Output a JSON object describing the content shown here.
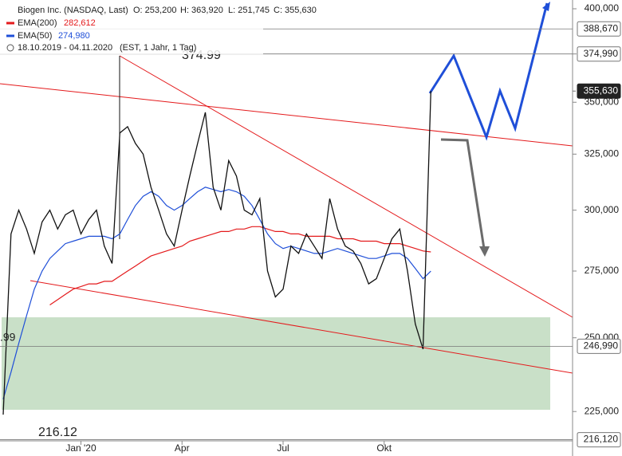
{
  "chart_data": {
    "type": "line",
    "title": "Biogen Inc. (NASDAQ, Last)",
    "header_stats": [
      "O: 253,200",
      "H: 363,920",
      "L: 251,745",
      "C: 355,630"
    ],
    "date_range": "18.10.2019 - 04.11.2020",
    "settings_text": "(EST, 1 Jahr, 1 Tag)",
    "log_scale": true,
    "ylim": [
      215770,
      405045
    ],
    "yticks": [
      {
        "value": 225000,
        "label": "225,000"
      },
      {
        "value": 250000,
        "label": "250,000"
      },
      {
        "value": 275000,
        "label": "275,000"
      },
      {
        "value": 300000,
        "label": "300,000"
      },
      {
        "value": 325000,
        "label": "325,000"
      },
      {
        "value": 350000,
        "label": "350,000"
      },
      {
        "value": 375000,
        "label": "375,000"
      },
      {
        "value": 400000,
        "label": "400,000"
      }
    ],
    "categories": [
      null,
      null,
      null,
      null,
      null,
      null,
      null,
      null,
      null,
      null,
      "Jan '20",
      null,
      null,
      null,
      null,
      null,
      null,
      null,
      null,
      null,
      null,
      null,
      null,
      "Apr",
      null,
      null,
      null,
      null,
      null,
      null,
      null,
      null,
      null,
      null,
      null,
      null,
      "Jul",
      null,
      null,
      null,
      null,
      null,
      null,
      null,
      null,
      null,
      null,
      null,
      null,
      "Okt",
      null,
      null,
      null,
      null,
      null,
      null
    ],
    "color": "#111111",
    "values": [
      224000,
      290000,
      300000,
      292000,
      282000,
      295000,
      300000,
      292000,
      298000,
      300000,
      290000,
      296000,
      300000,
      285000,
      278000,
      335000,
      338000,
      330000,
      325000,
      310000,
      300000,
      290000,
      285000,
      300000,
      315000,
      330000,
      345000,
      310000,
      300000,
      322000,
      315000,
      300000,
      298000,
      305000,
      275000,
      265000,
      268000,
      285000,
      282000,
      290000,
      285000,
      280000,
      305000,
      292000,
      285000,
      283000,
      278000,
      270000,
      272000,
      280000,
      288000,
      292000,
      275000,
      255000,
      246000,
      355630
    ],
    "series": [
      {
        "name": "EMA(200)",
        "last_label": "282,612",
        "color": "#e41a1c",
        "values": [
          null,
          null,
          null,
          null,
          null,
          null,
          262000,
          264000,
          266000,
          268000,
          269000,
          270000,
          270000,
          271000,
          271000,
          273000,
          275000,
          277000,
          279000,
          281000,
          282000,
          283000,
          284000,
          285000,
          287000,
          288000,
          289000,
          290000,
          291000,
          291000,
          292000,
          292000,
          293000,
          293000,
          292000,
          291000,
          291000,
          290000,
          290000,
          289000,
          289000,
          289000,
          289000,
          288000,
          288000,
          288000,
          287000,
          287000,
          287000,
          286000,
          286000,
          286000,
          285000,
          284000,
          283000,
          282612
        ]
      },
      {
        "name": "EMA(50)",
        "last_label": "274,980",
        "color": "#1f4fd8",
        "values": [
          229000,
          238000,
          248000,
          258000,
          268000,
          275000,
          280000,
          283000,
          286000,
          287000,
          288000,
          289000,
          289000,
          289000,
          288000,
          290000,
          296000,
          302000,
          306000,
          308000,
          306000,
          302000,
          300000,
          302000,
          305000,
          308000,
          310000,
          309000,
          308000,
          309000,
          308000,
          306000,
          302000,
          296000,
          290000,
          286000,
          284000,
          285000,
          284000,
          283000,
          282000,
          282000,
          283000,
          284000,
          283000,
          282000,
          281000,
          280000,
          280000,
          281000,
          282000,
          282000,
          280000,
          276000,
          272000,
          274980
        ]
      }
    ],
    "levels": [
      {
        "value": 388670,
        "label": "388,670",
        "line": true,
        "highlight": false
      },
      {
        "value": 374990,
        "label": "374,990",
        "line": true,
        "highlight": false
      },
      {
        "value": 355630,
        "label": "355,630",
        "line": false,
        "highlight": true
      },
      {
        "value": 246990,
        "label": "246,990",
        "line": true,
        "highlight": false
      },
      {
        "value": 216120,
        "label": "216,120",
        "line": true,
        "highlight": false
      }
    ],
    "annotations": [
      "374.99",
      "216.12",
      ".99"
    ]
  }
}
